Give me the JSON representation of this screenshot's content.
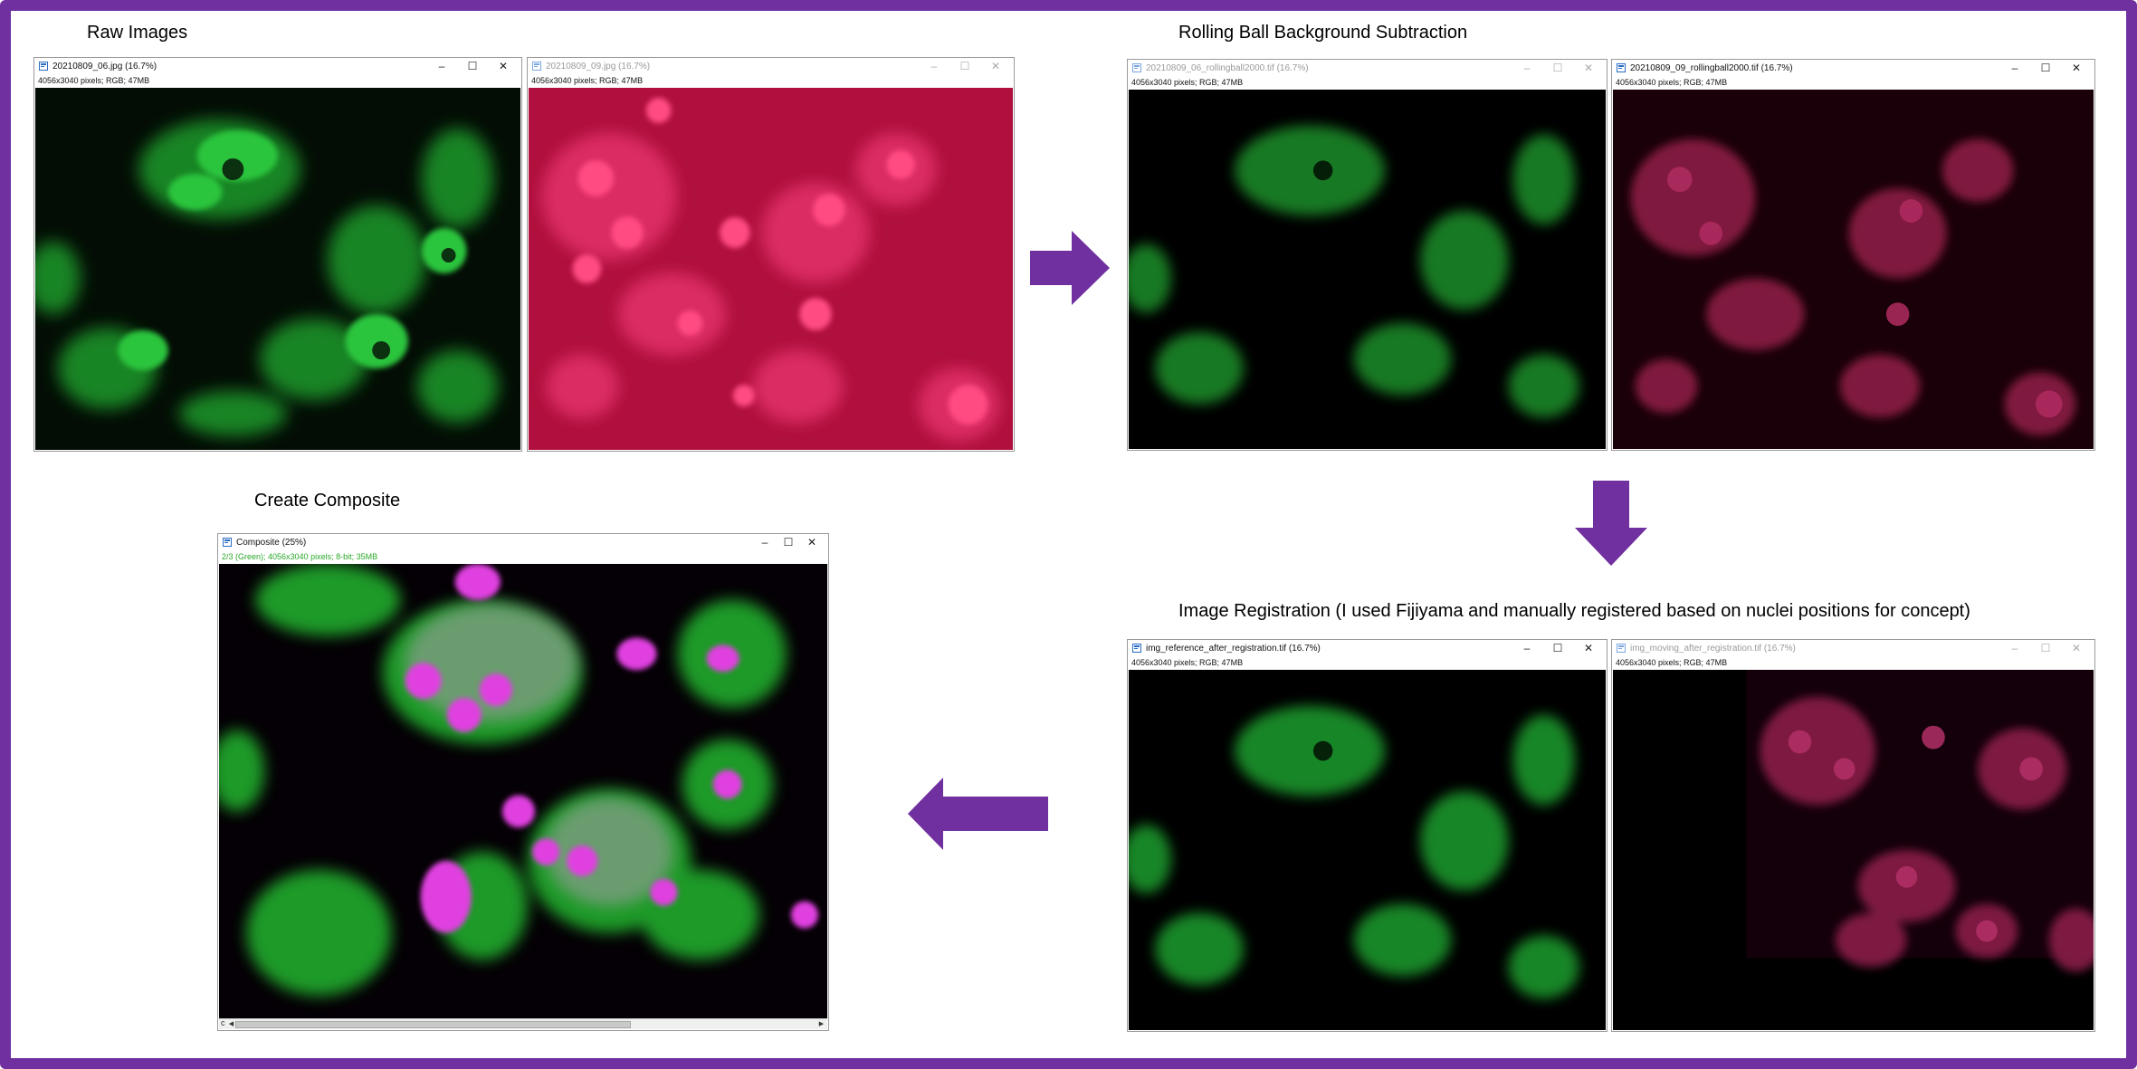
{
  "colors": {
    "frame": "#7030a0",
    "arrow": "#7030a0",
    "green_channel": "#20c030",
    "red_channel": "#e0306a",
    "magenta_nuclei": "#e040e0"
  },
  "sections": {
    "raw": "Raw Images",
    "rolling": "Rolling Ball Background Subtraction",
    "registration": "Image Registration (I used Fijiyama and manually registered based on nuclei positions for concept)",
    "composite": "Create Composite"
  },
  "windows": {
    "raw_green": {
      "title": "20210809_06.jpg (16.7%)",
      "info": "4056x3040 pixels; RGB; 47MB"
    },
    "raw_red": {
      "title": "20210809_09.jpg (16.7%)",
      "info": "4056x3040 pixels; RGB; 47MB"
    },
    "rb_green": {
      "title": "20210809_06_rollingball2000.tif (16.7%)",
      "info": "4056x3040 pixels; RGB; 47MB"
    },
    "rb_red": {
      "title": "20210809_09_rollingball2000.tif (16.7%)",
      "info": "4056x3040 pixels; RGB; 47MB"
    },
    "reg_ref": {
      "title": "img_reference_after_registration.tif (16.7%)",
      "info": "4056x3040 pixels; RGB; 47MB"
    },
    "reg_mov": {
      "title": "img_moving_after_registration.tif (16.7%)",
      "info": "4056x3040 pixels; RGB; 47MB"
    },
    "composite": {
      "title": "Composite (25%)",
      "info": "2/3 (Green); 4056x3040 pixels; 8-bit; 35MB",
      "scroll_label": "c"
    }
  },
  "window_controls": {
    "minimize": "–",
    "maximize": "☐",
    "close": "✕"
  },
  "icons": {
    "window": "imagej-window-icon",
    "arrow": "flow-arrow-icon"
  }
}
